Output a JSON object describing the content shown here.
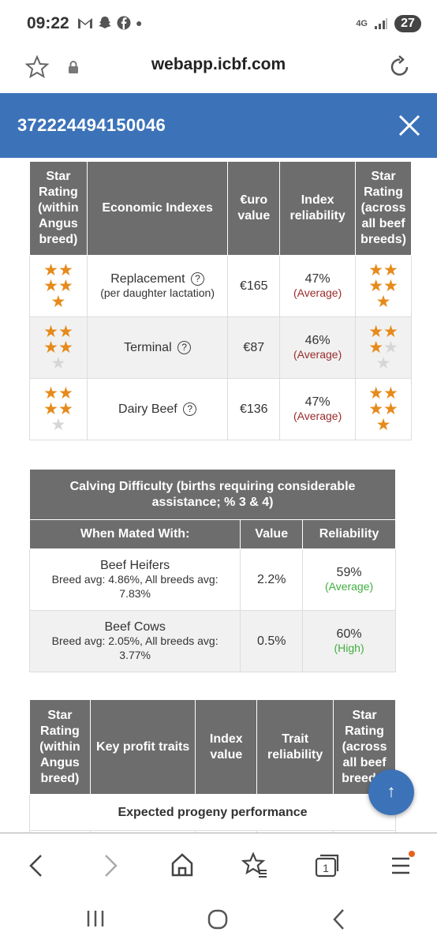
{
  "status": {
    "time": "09:22",
    "network": "4G",
    "battery": "27"
  },
  "browser": {
    "url": "webapp.icbf.com"
  },
  "header": {
    "title": "372224494150046"
  },
  "economic": {
    "headers": [
      "Star Rating (within Angus breed)",
      "Economic Indexes",
      "€uro value",
      "Index reliability",
      "Star Rating (across all beef breeds)"
    ],
    "rows": [
      {
        "name": "Replacement",
        "sub": "(per daughter lactation)",
        "value": "€165",
        "reliability": "47%",
        "rel_label": "(Average)",
        "stars_within": 5,
        "stars_across": 5
      },
      {
        "name": "Terminal",
        "sub": "",
        "value": "€87",
        "reliability": "46%",
        "rel_label": "(Average)",
        "stars_within": 4,
        "stars_across": 3
      },
      {
        "name": "Dairy Beef",
        "sub": "",
        "value": "€136",
        "reliability": "47%",
        "rel_label": "(Average)",
        "stars_within": 4,
        "stars_across": 5
      }
    ]
  },
  "calving": {
    "title": "Calving Difficulty (births requiring considerable assistance; % 3 & 4)",
    "headers": [
      "When Mated With:",
      "Value",
      "Reliability"
    ],
    "rows": [
      {
        "name": "Beef Heifers",
        "sub": "Breed avg: 4.86%, All breeds avg: 7.83%",
        "value": "2.2%",
        "reliability": "59%",
        "rel_label": "(Average)"
      },
      {
        "name": "Beef Cows",
        "sub": "Breed avg: 2.05%, All breeds avg: 3.77%",
        "value": "0.5%",
        "reliability": "60%",
        "rel_label": "(High)"
      }
    ]
  },
  "profit": {
    "headers": [
      "Star Rating (within Angus breed)",
      "Key profit traits",
      "Index value",
      "Trait reliability",
      "Star Rating (across all beef breeds)"
    ],
    "section": "Expected progeny performance"
  },
  "colors": {
    "accent": "#3c72b8",
    "star": "#e68a1a",
    "header_gray": "#6d6d6d"
  }
}
